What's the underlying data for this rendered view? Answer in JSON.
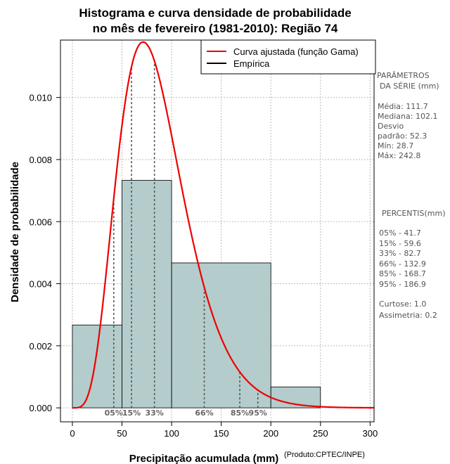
{
  "chart_data": {
    "type": "bar",
    "title_line1": "Histograma e curva densidade de probabilidade",
    "title_line2": "no mês de fevereiro (1981-2010): Região 74",
    "xlabel": "Precipitação acumulada (mm)",
    "ylabel": "Densidade de probabilidade",
    "credit": "(Produto:CPTEC/INPE)",
    "xlim": [
      -12,
      304
    ],
    "ylim": [
      -0.00045,
      0.01185
    ],
    "x_ticks": [
      0,
      50,
      100,
      150,
      200,
      250,
      300
    ],
    "x_tick_labels": [
      "0",
      "50",
      "100",
      "150",
      "200",
      "250",
      "300"
    ],
    "y_ticks": [
      0.0,
      0.002,
      0.004,
      0.006,
      0.008,
      0.01
    ],
    "y_tick_labels": [
      "0.000",
      "0.002",
      "0.004",
      "0.006",
      "0.008",
      "0.010"
    ],
    "grid": true,
    "bins": [
      {
        "start": 0,
        "end": 50,
        "density": 0.00267
      },
      {
        "start": 50,
        "end": 100,
        "density": 0.00733
      },
      {
        "start": 100,
        "end": 200,
        "density": 0.00467
      },
      {
        "start": 200,
        "end": 250,
        "density": 0.00067
      }
    ],
    "bar_color": "#b4cccc",
    "gamma_fit": {
      "name": "Curva ajustada (função Gama)",
      "shape": 5.6,
      "scale": 15.5,
      "color": "#ee0000"
    },
    "legend": {
      "position": "top-right",
      "entries": [
        {
          "label": "Curva ajustada (função Gama)",
          "color": "#ee0000"
        },
        {
          "label": "Empírica",
          "color": "#000000"
        }
      ]
    },
    "percentile_markers": [
      {
        "label": "05%",
        "value": 41.7
      },
      {
        "label": "15%",
        "value": 59.6
      },
      {
        "label": "33%",
        "value": 82.7
      },
      {
        "label": "66%",
        "value": 132.9
      },
      {
        "label": "85%",
        "value": 168.7
      },
      {
        "label": "95%",
        "value": 186.9
      }
    ]
  },
  "side_panel": {
    "params_title1": "PARÂMETROS",
    "params_title2": "DA SÉRIE (mm)",
    "params": [
      "Média:  111.7",
      "Mediana:  102.1",
      "Desvio",
      "padrão:  52.3",
      "Mín:  28.7",
      "Máx:  242.8"
    ],
    "percentis_title": "PERCENTIS(mm)",
    "percentis": [
      "05% -   41.7",
      "15% -   59.6",
      "33% -   82.7",
      "66% -   132.9",
      "85% -   168.7",
      "95% -   186.9"
    ],
    "curtose": "Curtose:  1.0",
    "assimetria": "Assimetria:  0.2"
  }
}
